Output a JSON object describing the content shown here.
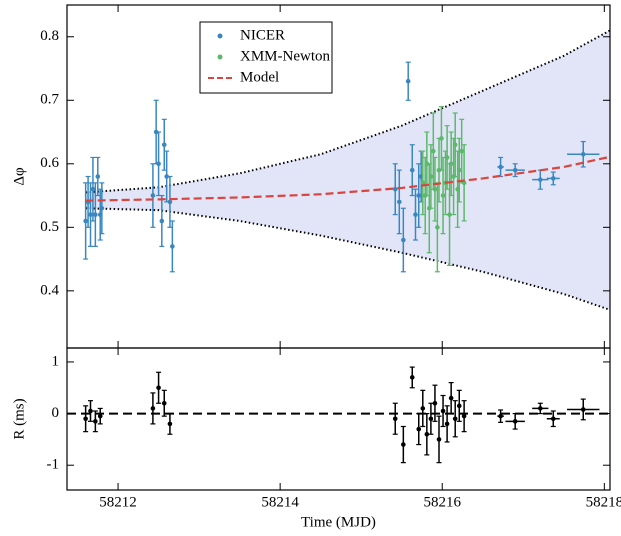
{
  "chart_data": [
    {
      "type": "scatter",
      "ylabel": "Δφ",
      "legend": "upper-left",
      "xlim": [
        58211.37,
        58218.07
      ],
      "ylim": [
        0.31,
        0.85
      ],
      "xticks": [
        58212,
        58214,
        58216,
        58218
      ],
      "yticks": [
        0.4,
        0.5,
        0.6,
        0.7,
        0.8
      ],
      "envelope": {
        "color": "#e2e5f8",
        "x": [
          58211.6,
          58212.5,
          58213.5,
          58214.5,
          58215.5,
          58216.5,
          58217.5,
          58218.07
        ],
        "upper": [
          0.555,
          0.563,
          0.585,
          0.615,
          0.66,
          0.715,
          0.77,
          0.81
        ],
        "lower": [
          0.53,
          0.527,
          0.51,
          0.487,
          0.46,
          0.43,
          0.395,
          0.37
        ]
      },
      "series": [
        {
          "name": "NICER",
          "color": "#3a87c0",
          "style": "points",
          "x": [
            58211.6,
            58211.63,
            58211.66,
            58211.69,
            58211.72,
            58211.75,
            58211.78,
            58211.8,
            58212.43,
            58212.47,
            58212.5,
            58212.54,
            58212.57,
            58212.6,
            58212.64,
            58212.67,
            58215.42,
            58215.47,
            58215.52,
            58215.58,
            58215.63,
            58215.67,
            58215.71,
            58215.74,
            58216.72,
            58216.9,
            58217.21,
            58217.37,
            58217.74
          ],
          "values": [
            0.51,
            0.54,
            0.52,
            0.56,
            0.52,
            0.58,
            0.52,
            0.53,
            0.55,
            0.65,
            0.6,
            0.51,
            0.63,
            0.58,
            0.54,
            0.47,
            0.56,
            0.54,
            0.48,
            0.73,
            0.59,
            0.52,
            0.55,
            0.58,
            0.595,
            0.59,
            0.575,
            0.577,
            0.615
          ],
          "errors": [
            0.06,
            0.04,
            0.05,
            0.05,
            0.05,
            0.03,
            0.04,
            0.04,
            0.05,
            0.05,
            0.05,
            0.04,
            0.04,
            0.04,
            0.04,
            0.04,
            0.04,
            0.05,
            0.05,
            0.03,
            0.04,
            0.04,
            0.05,
            0.04,
            0.015,
            0.01,
            0.015,
            0.01,
            0.02
          ],
          "x_errors": [
            0,
            0,
            0,
            0,
            0,
            0,
            0,
            0,
            0,
            0,
            0,
            0,
            0,
            0,
            0,
            0,
            0,
            0,
            0,
            0,
            0,
            0,
            0,
            0,
            0.04,
            0.12,
            0.1,
            0.08,
            0.2
          ]
        },
        {
          "name": "XMM-Newton",
          "color": "#5cb86a",
          "style": "points",
          "x": [
            58215.76,
            58215.79,
            58215.81,
            58215.84,
            58215.86,
            58215.89,
            58215.91,
            58215.94,
            58215.96,
            58215.99,
            58216.01,
            58216.04,
            58216.06,
            58216.09,
            58216.11,
            58216.14,
            58216.16,
            58216.19,
            58216.21,
            58216.24,
            58216.27
          ],
          "values": [
            0.57,
            0.55,
            0.6,
            0.53,
            0.58,
            0.62,
            0.56,
            0.5,
            0.59,
            0.64,
            0.55,
            0.57,
            0.61,
            0.52,
            0.6,
            0.58,
            0.63,
            0.56,
            0.59,
            0.62,
            0.57
          ],
          "errors": [
            0.05,
            0.06,
            0.05,
            0.07,
            0.05,
            0.06,
            0.05,
            0.07,
            0.05,
            0.05,
            0.06,
            0.05,
            0.05,
            0.08,
            0.05,
            0.06,
            0.05,
            0.06,
            0.05,
            0.05,
            0.06
          ],
          "x_errors": [
            0,
            0,
            0,
            0,
            0,
            0,
            0,
            0,
            0,
            0,
            0,
            0,
            0,
            0,
            0,
            0,
            0,
            0,
            0,
            0,
            0
          ]
        },
        {
          "name": "Model",
          "color": "#d9453f",
          "style": "dashed",
          "x": [
            58211.6,
            58212.5,
            58213.5,
            58214.5,
            58215.5,
            58216.5,
            58217.5,
            58218.07
          ],
          "values": [
            0.542,
            0.544,
            0.547,
            0.552,
            0.562,
            0.577,
            0.595,
            0.611
          ]
        }
      ]
    },
    {
      "type": "scatter",
      "ylabel": "R (ms)",
      "xlabel": "Time (MJD)",
      "hline": 0,
      "xlim": [
        58211.37,
        58218.07
      ],
      "ylim": [
        -1.48,
        1.27
      ],
      "xticks": [
        58212,
        58214,
        58216,
        58218
      ],
      "yticks": [
        -1,
        0,
        1
      ],
      "series": [
        {
          "color": "#000000",
          "style": "points",
          "x": [
            58211.6,
            58211.66,
            58211.72,
            58211.78,
            58212.43,
            58212.5,
            58212.57,
            58212.64,
            58215.42,
            58215.52,
            58215.63,
            58215.71,
            58215.76,
            58215.81,
            58215.86,
            58215.91,
            58215.96,
            58216.01,
            58216.06,
            58216.11,
            58216.16,
            58216.21,
            58216.27,
            58216.72,
            58216.9,
            58217.21,
            58217.37,
            58217.74
          ],
          "values": [
            -0.1,
            0.05,
            -0.15,
            -0.05,
            0.1,
            0.5,
            0.2,
            -0.2,
            -0.1,
            -0.6,
            0.7,
            -0.3,
            0.1,
            -0.4,
            -0.1,
            0.2,
            -0.5,
            0.05,
            -0.2,
            0.3,
            -0.1,
            0.15,
            -0.05,
            -0.05,
            -0.15,
            0.1,
            -0.1,
            0.08
          ],
          "errors": [
            0.25,
            0.2,
            0.2,
            0.15,
            0.3,
            0.3,
            0.25,
            0.2,
            0.3,
            0.35,
            0.2,
            0.3,
            0.35,
            0.4,
            0.3,
            0.35,
            0.45,
            0.3,
            0.35,
            0.3,
            0.35,
            0.3,
            0.3,
            0.12,
            0.15,
            0.1,
            0.15,
            0.2
          ],
          "x_errors": [
            0,
            0,
            0,
            0,
            0,
            0,
            0,
            0,
            0,
            0,
            0,
            0,
            0,
            0,
            0,
            0,
            0,
            0,
            0,
            0,
            0,
            0,
            0,
            0.04,
            0.12,
            0.1,
            0.08,
            0.2
          ]
        }
      ]
    }
  ]
}
